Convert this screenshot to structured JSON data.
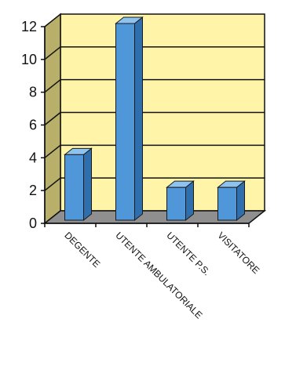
{
  "chart_data": {
    "type": "bar",
    "categories": [
      "DEGENTE",
      "UTENTE AMBULATORIALE",
      "UTENTE P.S.",
      "VISITATORE"
    ],
    "values": [
      4,
      12,
      2,
      2
    ],
    "title": "",
    "xlabel": "",
    "ylabel": "",
    "ylim": [
      0,
      12
    ],
    "yticks": [
      "0",
      "2",
      "4",
      "6",
      "8",
      "10",
      "12"
    ],
    "grid": true,
    "legend": "none",
    "style": "3d-column"
  },
  "colors": {
    "bar_front": "#4f97d9",
    "bar_side": "#2f6fae",
    "bar_top": "#8ec2ef",
    "plot_back": "#fff4a8",
    "plot_side": "#b8b06a",
    "plot_floor": "#8f8f8f",
    "grid": "#111111"
  }
}
